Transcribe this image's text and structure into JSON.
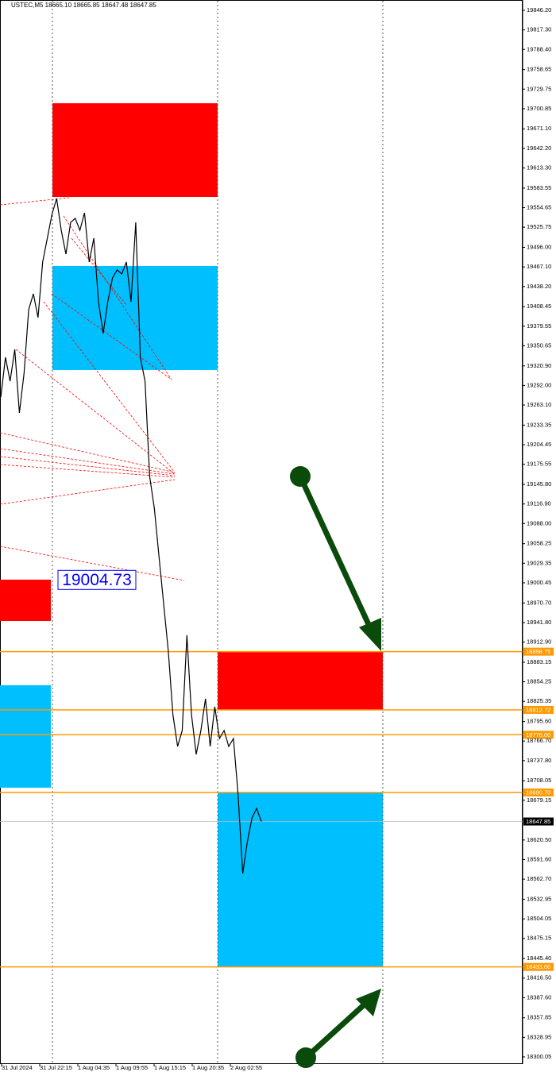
{
  "header": "USTEC,M5  18665.10 18665.85 18647.48 18647.85",
  "chart_data": {
    "type": "line",
    "color": "#000000",
    "values": [
      19274.9,
      19333.6,
      19298.4,
      19345.3,
      19251.4,
      19310.1,
      19403.9,
      19427.4,
      19392.2,
      19474.3,
      19509.5,
      19544.7,
      19568.2,
      19521.2,
      19486.1,
      19533.0,
      19538.8,
      19521.2,
      19547.1,
      19474.3,
      19509.5,
      19415.7,
      19368.7,
      19415.7,
      19450.9,
      19462.6,
      19456.7,
      19474.3,
      19415.7,
      19533.0,
      19333.6,
      19298.4,
      19157.6,
      19110.7,
      19040.3,
      18969.9,
      18899.5,
      18805.7,
      18758.7,
      18782.2,
      18923.0,
      18805.7,
      18747.0,
      18782.2,
      18829.1,
      18758.7,
      18817.4,
      18770.5,
      18782.2,
      18758.7,
      18770.5,
      18688.3,
      18571.0,
      18617.9,
      18653.2,
      18667.2,
      18647.85
    ],
    "ylim": [
      18289.5,
      19861.45
    ],
    "yticks": [
      {
        "value": 19846.2,
        "label": "19846.20"
      },
      {
        "value": 19817.3,
        "label": "19817.30"
      },
      {
        "value": 19788.4,
        "label": "19788.40"
      },
      19758.65,
      19729.75,
      19700.85,
      {
        "value": 19671.1,
        "label": "19671.10"
      },
      {
        "value": 19642.2,
        "label": "19642.20"
      },
      {
        "value": 19613.3,
        "label": "19613.30"
      },
      19583.55,
      19554.65,
      19525.75,
      {
        "value": 19496,
        "label": "19496.00"
      },
      {
        "value": 19467.1,
        "label": "19467.10"
      },
      {
        "value": 19438.2,
        "label": "19438.20"
      },
      19408.45,
      19379.55,
      19350.65,
      {
        "value": 19320.9,
        "label": "19320.90"
      },
      {
        "value": 19292,
        "label": "19292.00"
      },
      {
        "value": 19263.1,
        "label": "19263.10"
      },
      19233.35,
      19204.45,
      19175.55,
      {
        "value": 19145.8,
        "label": "19145.80"
      },
      {
        "value": 19116.9,
        "label": "19116.90"
      },
      {
        "value": 19088,
        "label": "19088.00"
      },
      19058.25,
      19029.35,
      19000.45,
      {
        "value": 18970.7,
        "label": "18970.70"
      },
      {
        "value": 18941.8,
        "label": "18941.80"
      },
      {
        "value": 18912.9,
        "label": "18912.90"
      },
      18883.15,
      18854.25,
      18825.35,
      {
        "value": 18795.6,
        "label": "18795.60"
      },
      {
        "value": 18766.7,
        "label": "18766.70"
      },
      {
        "value": 18737.8,
        "label": "18737.80"
      },
      18708.05,
      18679.15,
      {
        "value": 18620.5,
        "label": "18620.50"
      },
      {
        "value": 18591.6,
        "label": "18591.60"
      },
      {
        "value": 18562.7,
        "label": "18562.70"
      },
      18532.95,
      18504.05,
      18475.15,
      {
        "value": 18445.4,
        "label": "18445.40"
      },
      {
        "value": 18416.5,
        "label": "18416.50"
      },
      {
        "value": 18387.6,
        "label": "18387.60"
      },
      18357.85,
      18328.95,
      18300.05
    ],
    "xtick_labels": [
      "31 Jul 2024",
      "31 Jul 22:15",
      "1 Aug 04:35",
      "1 Aug 09:55",
      "1 Aug 15:15",
      "1 Aug 20:35",
      "2 Aug 02:55"
    ],
    "price_levels": [
      18898.75,
      18812.72,
      {
        "value": 18776,
        "label": "18776.00"
      },
      {
        "value": 18690.7,
        "label": "18690.70"
      },
      {
        "value": 18433,
        "label": "18433.00"
      }
    ],
    "level_color": "#ff9900",
    "current_price": 18647.85,
    "annotation": 19004.73,
    "zones": [
      {
        "color": "#ff0000",
        "range": [
          19708.9,
          19570.5
        ]
      },
      {
        "color": "#00bfff",
        "range": [
          19468.5,
          19314.8
        ]
      },
      {
        "color": "#ff0000",
        "range": [
          19005.1,
          18944.1
        ]
      },
      {
        "color": "#00bfff",
        "range": [
          18849.1,
          18697.8
        ]
      },
      {
        "color": "#ff0000",
        "range": [
          18898.75,
          18812.72
        ]
      },
      {
        "color": "#00bfff",
        "range": [
          18690.7,
          18433
        ]
      }
    ]
  }
}
